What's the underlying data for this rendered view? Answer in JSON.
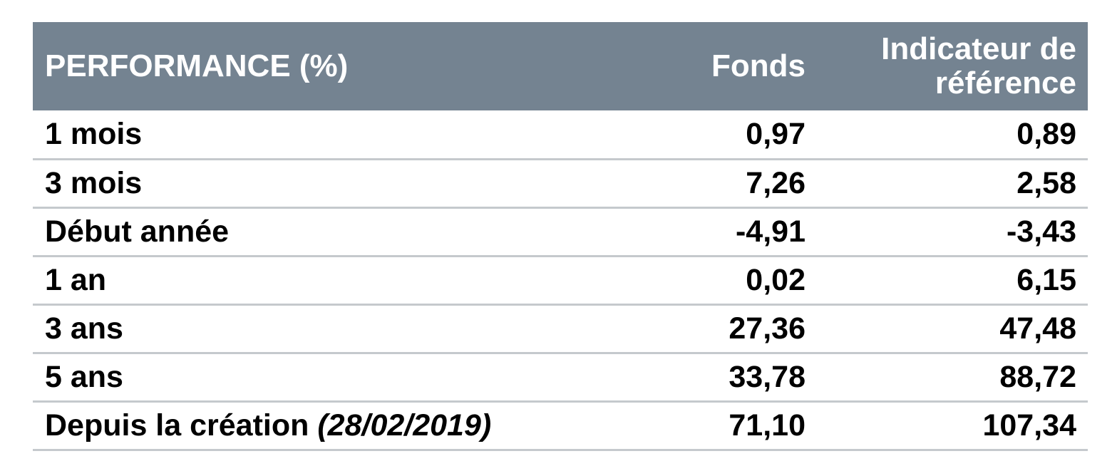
{
  "chart_data": {
    "type": "table",
    "columns": [
      "PERFORMANCE (%)",
      "Fonds",
      "Indicateur de référence"
    ],
    "header": {
      "label": "PERFORMANCE (%)",
      "fund": "Fonds",
      "benchmark_line1": "Indicateur de",
      "benchmark_line2": "référence"
    },
    "rows": [
      {
        "period": "1 mois",
        "note": "",
        "fund": "0,97",
        "benchmark": "0,89"
      },
      {
        "period": "3 mois",
        "note": "",
        "fund": "7,26",
        "benchmark": "2,58"
      },
      {
        "period": "Début année",
        "note": "",
        "fund": "-4,91",
        "benchmark": "-3,43"
      },
      {
        "period": "1 an",
        "note": "",
        "fund": "0,02",
        "benchmark": "6,15"
      },
      {
        "period": "3 ans",
        "note": "",
        "fund": "27,36",
        "benchmark": "47,48"
      },
      {
        "period": "5 ans",
        "note": "",
        "fund": "33,78",
        "benchmark": "88,72"
      },
      {
        "period": "Depuis la création",
        "note": "(28/02/2019)",
        "fund": "71,10",
        "benchmark": "107,34"
      }
    ]
  },
  "colors": {
    "header_background": "#748391",
    "header_text": "#ffffff",
    "row_divider": "#c5c9cd",
    "body_text": "#000000"
  }
}
